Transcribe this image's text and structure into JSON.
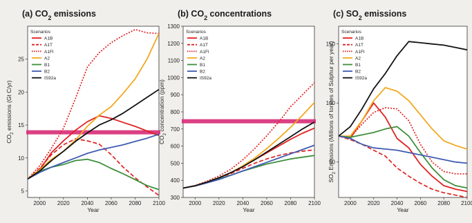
{
  "colors": {
    "A1B": "#e0201f",
    "A1T": "#e0201f",
    "A1FI": "#e0201f",
    "A2": "#f2a81d",
    "B1": "#3d8f3a",
    "B2": "#3f5bb0",
    "IS92a": "#111111",
    "highlight": "#d8307a"
  },
  "chart_data": [
    {
      "type": "line",
      "title_prefix": "(a) CO",
      "title_sub": "2",
      "title_suffix": " emissions",
      "xlabel": "Year",
      "ylabel_prefix": "CO",
      "ylabel_sub": "2",
      "ylabel_suffix": " emissions (Gt C/yr)",
      "xlim": [
        1990,
        2100
      ],
      "ylim": [
        4,
        30
      ],
      "x_ticks": [
        2000,
        2020,
        2040,
        2060,
        2080,
        2100
      ],
      "y_ticks": [
        5,
        10,
        15,
        20,
        25
      ],
      "legend_title": "Scenarios",
      "legend_position": "top-left",
      "highlight_line_value": 13.9,
      "series": [
        {
          "name": "A1B",
          "style": "solid",
          "x": [
            1990,
            2000,
            2010,
            2020,
            2030,
            2040,
            2050,
            2060,
            2070,
            2080,
            2090,
            2100
          ],
          "y": [
            6.8,
            8.2,
            10.8,
            12.6,
            14.2,
            15.5,
            16.4,
            16.0,
            15.4,
            14.8,
            14.1,
            13.4
          ]
        },
        {
          "name": "A1T",
          "style": "dashed",
          "x": [
            1990,
            2000,
            2010,
            2020,
            2030,
            2040,
            2050,
            2060,
            2070,
            2080,
            2090,
            2100
          ],
          "y": [
            6.8,
            8.4,
            10.5,
            12.0,
            12.9,
            12.6,
            12.1,
            10.5,
            8.6,
            7.0,
            5.6,
            4.3
          ]
        },
        {
          "name": "A1FI",
          "style": "dotted",
          "x": [
            1990,
            2000,
            2010,
            2020,
            2030,
            2040,
            2050,
            2060,
            2070,
            2080,
            2090,
            2100
          ],
          "y": [
            6.8,
            8.8,
            11.5,
            14.5,
            19.0,
            23.8,
            26.0,
            27.5,
            28.6,
            29.5,
            29.0,
            28.9
          ]
        },
        {
          "name": "A2",
          "style": "solid",
          "x": [
            1990,
            2000,
            2010,
            2020,
            2030,
            2040,
            2050,
            2060,
            2070,
            2080,
            2090,
            2100
          ],
          "y": [
            6.8,
            8.2,
            9.8,
            11.0,
            12.7,
            14.8,
            16.5,
            17.8,
            19.8,
            22.0,
            25.0,
            28.9
          ]
        },
        {
          "name": "B1",
          "style": "solid",
          "x": [
            1990,
            2000,
            2010,
            2020,
            2030,
            2040,
            2050,
            2060,
            2070,
            2080,
            2090,
            2100
          ],
          "y": [
            6.8,
            8.0,
            8.6,
            9.0,
            9.6,
            9.8,
            9.3,
            8.4,
            7.6,
            6.7,
            5.8,
            5.2
          ]
        },
        {
          "name": "B2",
          "style": "solid",
          "x": [
            1990,
            2000,
            2010,
            2020,
            2030,
            2040,
            2050,
            2060,
            2070,
            2080,
            2090,
            2100
          ],
          "y": [
            6.8,
            7.8,
            8.6,
            9.3,
            10.0,
            10.7,
            11.2,
            11.6,
            12.0,
            12.5,
            13.0,
            13.6
          ]
        },
        {
          "name": "IS92a",
          "style": "solid",
          "x": [
            1990,
            2000,
            2010,
            2020,
            2030,
            2040,
            2050,
            2060,
            2070,
            2080,
            2090,
            2100
          ],
          "y": [
            6.8,
            8.0,
            9.6,
            11.0,
            12.5,
            13.8,
            15.0,
            15.8,
            16.8,
            18.0,
            19.2,
            20.4
          ]
        }
      ]
    },
    {
      "type": "line",
      "title_prefix": "(b) CO",
      "title_sub": "2",
      "title_suffix": " concentrations",
      "xlabel": "Year",
      "ylabel_prefix": "CO",
      "ylabel_sub": "2",
      "ylabel_suffix": " concentration (ppm)",
      "xlim": [
        1990,
        2100
      ],
      "ylim": [
        300,
        1300
      ],
      "x_ticks": [
        2000,
        2020,
        2040,
        2060,
        2080,
        2100
      ],
      "y_ticks": [
        300,
        400,
        500,
        600,
        700,
        800,
        900,
        1000,
        1100,
        1200,
        1300
      ],
      "legend_title": "Scenarios",
      "legend_position": "top-left",
      "highlight_line_value": 745,
      "series": [
        {
          "name": "A1B",
          "style": "solid",
          "x": [
            1990,
            2000,
            2010,
            2020,
            2030,
            2040,
            2050,
            2060,
            2070,
            2080,
            2090,
            2100
          ],
          "y": [
            355,
            368,
            390,
            415,
            445,
            480,
            520,
            560,
            600,
            640,
            675,
            705
          ]
        },
        {
          "name": "A1T",
          "style": "dashed",
          "x": [
            1990,
            2000,
            2010,
            2020,
            2030,
            2040,
            2050,
            2060,
            2070,
            2080,
            2090,
            2100
          ],
          "y": [
            355,
            368,
            390,
            415,
            440,
            470,
            500,
            525,
            545,
            560,
            570,
            578
          ]
        },
        {
          "name": "A1FI",
          "style": "dotted",
          "x": [
            1990,
            2000,
            2010,
            2020,
            2030,
            2040,
            2050,
            2060,
            2070,
            2080,
            2090,
            2100
          ],
          "y": [
            355,
            370,
            395,
            425,
            465,
            520,
            585,
            660,
            740,
            830,
            900,
            970
          ]
        },
        {
          "name": "A2",
          "style": "solid",
          "x": [
            1990,
            2000,
            2010,
            2020,
            2030,
            2040,
            2050,
            2060,
            2070,
            2080,
            2090,
            2100
          ],
          "y": [
            355,
            368,
            390,
            415,
            445,
            485,
            530,
            585,
            645,
            710,
            780,
            855
          ]
        },
        {
          "name": "B1",
          "style": "solid",
          "x": [
            1990,
            2000,
            2010,
            2020,
            2030,
            2040,
            2050,
            2060,
            2070,
            2080,
            2090,
            2100
          ],
          "y": [
            355,
            368,
            388,
            410,
            430,
            455,
            475,
            495,
            510,
            525,
            535,
            545
          ]
        },
        {
          "name": "B2",
          "style": "solid",
          "x": [
            1990,
            2000,
            2010,
            2020,
            2030,
            2040,
            2050,
            2060,
            2070,
            2080,
            2090,
            2100
          ],
          "y": [
            355,
            367,
            385,
            405,
            430,
            455,
            480,
            505,
            530,
            555,
            580,
            605
          ]
        },
        {
          "name": "IS92a",
          "style": "solid",
          "x": [
            1990,
            2000,
            2010,
            2020,
            2030,
            2040,
            2050,
            2060,
            2070,
            2080,
            2090,
            2100
          ],
          "y": [
            355,
            368,
            390,
            415,
            445,
            480,
            520,
            565,
            610,
            655,
            700,
            740
          ]
        }
      ]
    },
    {
      "type": "line",
      "title_prefix": "(c) SO",
      "title_sub": "2",
      "title_suffix": " emissions",
      "xlabel": "Year",
      "ylabel_prefix": "SO",
      "ylabel_sub": "2",
      "ylabel_suffix": " Emissions (Millions of tonnes of Sulphur per year)",
      "xlim": [
        1990,
        2100
      ],
      "ylim": [
        20,
        165
      ],
      "x_ticks": [
        2000,
        2020,
        2040,
        2060,
        2080,
        2100
      ],
      "y_ticks": [
        50,
        100,
        150
      ],
      "legend_title": "Scenarios",
      "legend_position": "top-left",
      "series": [
        {
          "name": "A1B",
          "style": "solid",
          "x": [
            1990,
            2000,
            2010,
            2020,
            2030,
            2040,
            2050,
            2060,
            2070,
            2080,
            2090,
            2100
          ],
          "y": [
            72,
            70,
            85,
            100,
            88,
            70,
            62,
            48,
            38,
            30,
            27,
            25
          ]
        },
        {
          "name": "A1T",
          "style": "dashed",
          "x": [
            1990,
            2000,
            2010,
            2020,
            2030,
            2040,
            2050,
            2060,
            2070,
            2080,
            2090,
            2100
          ],
          "y": [
            72,
            69,
            65,
            60,
            55,
            45,
            38,
            32,
            27,
            24,
            22,
            20
          ]
        },
        {
          "name": "A1FI",
          "style": "dotted",
          "x": [
            1990,
            2000,
            2010,
            2020,
            2030,
            2040,
            2050,
            2060,
            2070,
            2080,
            2090,
            2100
          ],
          "y": [
            72,
            71,
            82,
            92,
            96,
            95,
            85,
            65,
            50,
            42,
            40,
            40
          ]
        },
        {
          "name": "A2",
          "style": "solid",
          "x": [
            1990,
            2000,
            2010,
            2020,
            2030,
            2040,
            2050,
            2060,
            2070,
            2080,
            2090,
            2100
          ],
          "y": [
            72,
            72,
            85,
            102,
            113,
            110,
            102,
            90,
            78,
            68,
            64,
            61
          ]
        },
        {
          "name": "B1",
          "style": "solid",
          "x": [
            1990,
            2000,
            2010,
            2020,
            2030,
            2040,
            2050,
            2060,
            2070,
            2080,
            2090,
            2100
          ],
          "y": [
            72,
            71,
            73,
            75,
            78,
            80,
            72,
            58,
            45,
            35,
            30,
            28
          ]
        },
        {
          "name": "B2",
          "style": "solid",
          "x": [
            1990,
            2000,
            2010,
            2020,
            2030,
            2040,
            2050,
            2060,
            2070,
            2080,
            2090,
            2100
          ],
          "y": [
            72,
            70,
            65,
            62,
            61,
            60,
            58,
            56,
            54,
            52,
            50,
            49
          ]
        },
        {
          "name": "IS92a",
          "style": "solid",
          "x": [
            1990,
            2000,
            2010,
            2020,
            2030,
            2040,
            2050,
            2060,
            2070,
            2080,
            2090,
            2100
          ],
          "y": [
            72,
            80,
            95,
            112,
            125,
            140,
            152,
            151,
            150,
            149,
            147,
            145
          ]
        }
      ]
    }
  ]
}
